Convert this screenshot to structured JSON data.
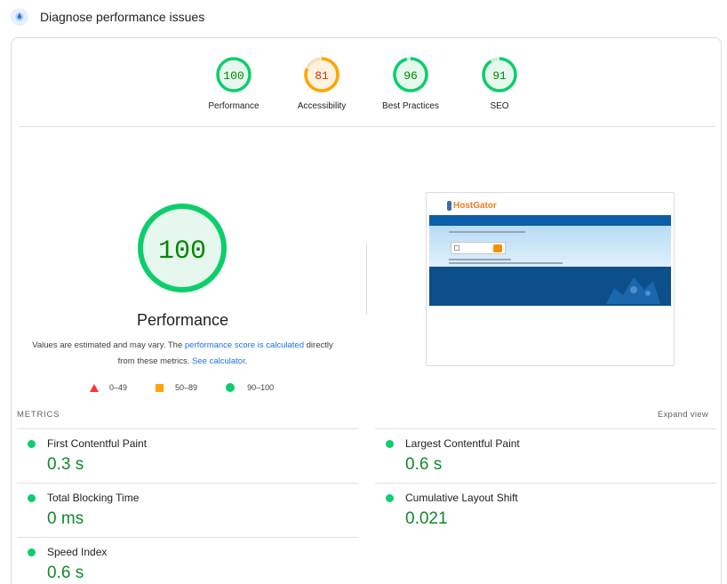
{
  "header": {
    "title": "Diagnose performance issues",
    "icon": "lighthouse-icon"
  },
  "gauges": [
    {
      "score": "100",
      "label": "Performance",
      "status": "pass",
      "color": "#0cce6b",
      "text_color": "#008800",
      "fill": "#e6f8ee"
    },
    {
      "score": "81",
      "label": "Accessibility",
      "status": "average",
      "color": "#ffa400",
      "text_color": "#c33300",
      "fill": "#fff3e0"
    },
    {
      "score": "96",
      "label": "Best Practices",
      "status": "pass",
      "color": "#0cce6b",
      "text_color": "#008800",
      "fill": "#e6f8ee"
    },
    {
      "score": "91",
      "label": "SEO",
      "status": "pass",
      "color": "#0cce6b",
      "text_color": "#008800",
      "fill": "#e6f8ee"
    }
  ],
  "main": {
    "score": "100",
    "title": "Performance",
    "desc_prefix": "Values are estimated and may vary. The ",
    "desc_link1": "performance score is calculated",
    "desc_middle": " directly from these metrics. ",
    "desc_link2": "See calculator",
    "desc_suffix": "."
  },
  "legend": [
    {
      "range": "0–49",
      "shape": "triangle",
      "color": "#ff3333"
    },
    {
      "range": "50–89",
      "shape": "square",
      "color": "#ffa400"
    },
    {
      "range": "90–100",
      "shape": "circle",
      "color": "#0cce6b"
    }
  ],
  "screenshot": {
    "brand": "HostGator"
  },
  "metrics": {
    "title": "METRICS",
    "expand_label": "Expand view",
    "items": [
      {
        "label": "First Contentful Paint",
        "value": "0.3 s"
      },
      {
        "label": "Largest Contentful Paint",
        "value": "0.6 s"
      },
      {
        "label": "Total Blocking Time",
        "value": "0 ms"
      },
      {
        "label": "Cumulative Layout Shift",
        "value": "0.021"
      },
      {
        "label": "Speed Index",
        "value": "0.6 s"
      }
    ]
  }
}
